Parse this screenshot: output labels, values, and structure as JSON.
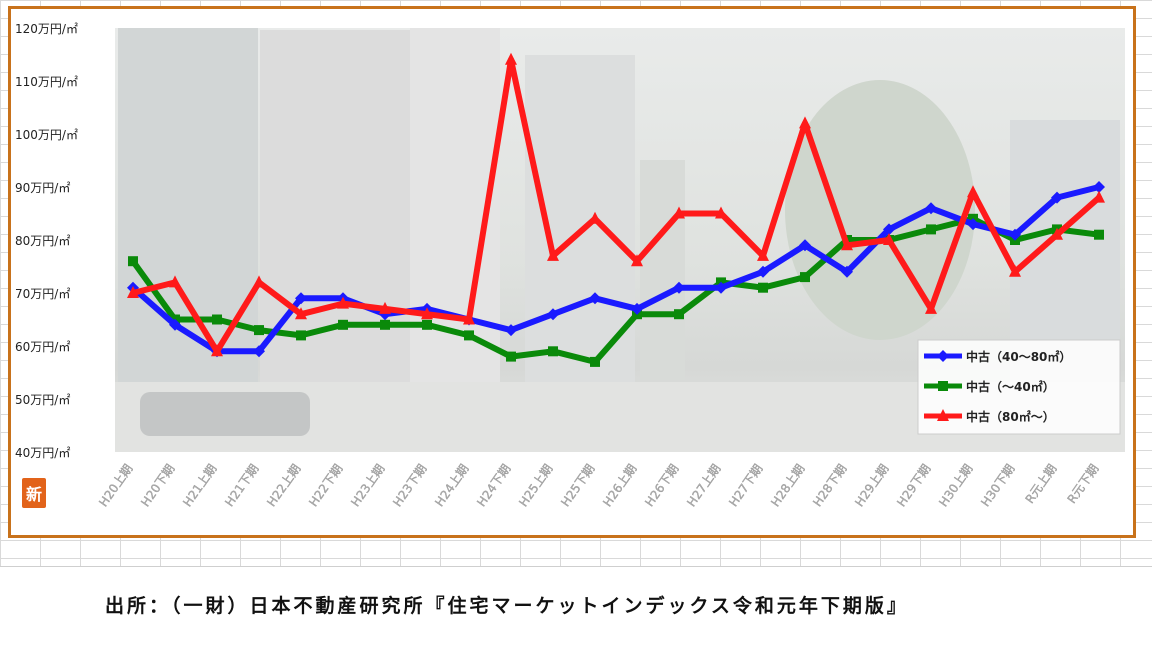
{
  "chart_data": {
    "type": "line",
    "y_unit": "万円/㎡",
    "ylim": [
      40,
      120
    ],
    "yticks": [
      "40万円/㎡",
      "50万円/㎡",
      "60万円/㎡",
      "70万円/㎡",
      "80万円/㎡",
      "90万円/㎡",
      "100万円/㎡",
      "110万円/㎡",
      "120万円/㎡"
    ],
    "categories": [
      "H20上期",
      "H20下期",
      "H21上期",
      "H21下期",
      "H22上期",
      "H22下期",
      "H23上期",
      "H23下期",
      "H24上期",
      "H24下期",
      "H25上期",
      "H25下期",
      "H26上期",
      "H26下期",
      "H27上期",
      "H27下期",
      "H28上期",
      "H28下期",
      "H29上期",
      "H29下期",
      "H30上期",
      "H30下期",
      "R元上期",
      "R元下期"
    ],
    "legend_position": "right",
    "series": [
      {
        "name": "中古（40～80㎡）",
        "color": "#1a1aff",
        "marker": "diamond",
        "values": [
          71,
          64,
          59,
          59,
          69,
          69,
          66,
          67,
          65,
          63,
          66,
          69,
          67,
          71,
          71,
          74,
          79,
          74,
          82,
          86,
          83,
          81,
          88,
          90
        ]
      },
      {
        "name": "中古（～40㎡）",
        "color": "#0a8a0a",
        "marker": "square",
        "values": [
          76,
          65,
          65,
          63,
          62,
          64,
          64,
          64,
          62,
          58,
          59,
          57,
          66,
          66,
          72,
          71,
          73,
          80,
          80,
          82,
          84,
          80,
          82,
          81
        ]
      },
      {
        "name": "中古（80㎡～）",
        "color": "#ff1a1a",
        "marker": "triangle",
        "values": [
          70,
          72,
          59,
          72,
          66,
          68,
          67,
          66,
          65,
          114,
          77,
          84,
          76,
          85,
          85,
          77,
          102,
          79,
          80,
          67,
          89,
          74,
          81,
          88
        ]
      }
    ]
  },
  "logo": {
    "glyph": "新"
  },
  "source": {
    "text": "出所：（一財）日本不動産研究所『住宅マーケットインデックス令和元年下期版』"
  }
}
